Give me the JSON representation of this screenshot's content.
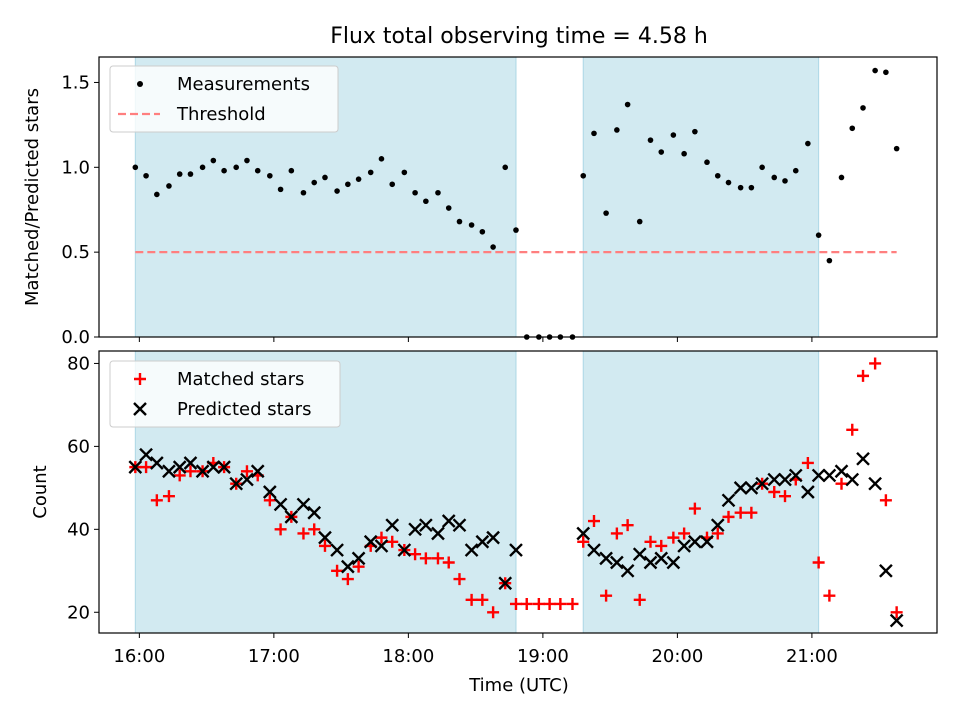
{
  "chart_data": {
    "title": "Flux total observing time = 4.58 h",
    "xlabel": "Time (UTC)",
    "x_ticks": [
      "16:00",
      "17:00",
      "18:00",
      "19:00",
      "20:00",
      "21:00"
    ],
    "x_tick_values": [
      16,
      17,
      18,
      19,
      20,
      21
    ],
    "xlim": [
      15.7,
      21.93
    ],
    "shaded_intervals": [
      [
        15.97,
        18.8
      ],
      [
        19.3,
        21.05
      ]
    ],
    "shade_color": "#add8e6",
    "panels": [
      {
        "type": "scatter",
        "ylabel": "Matched/Predicted stars",
        "ylim": [
          0,
          1.65
        ],
        "y_ticks": [
          0.0,
          0.5,
          1.0,
          1.5
        ],
        "y_tick_labels": [
          "0.0",
          "0.5",
          "1.0",
          "1.5"
        ],
        "legend_position": "top-left",
        "series": [
          {
            "name": "Measurements",
            "marker": "dot",
            "color": "#000000",
            "x": [
              15.97,
              16.05,
              16.13,
              16.22,
              16.3,
              16.38,
              16.47,
              16.55,
              16.63,
              16.72,
              16.8,
              16.88,
              16.97,
              17.05,
              17.13,
              17.22,
              17.3,
              17.38,
              17.47,
              17.55,
              17.63,
              17.72,
              17.8,
              17.88,
              17.97,
              18.05,
              18.13,
              18.22,
              18.3,
              18.38,
              18.47,
              18.55,
              18.63,
              18.72,
              18.8,
              18.88,
              18.97,
              19.05,
              19.13,
              19.22,
              19.3,
              19.38,
              19.47,
              19.55,
              19.63,
              19.72,
              19.8,
              19.88,
              19.97,
              20.05,
              20.13,
              20.22,
              20.3,
              20.38,
              20.47,
              20.55,
              20.63,
              20.72,
              20.8,
              20.88,
              20.97,
              21.05,
              21.13,
              21.22,
              21.3,
              21.38,
              21.47,
              21.55,
              21.63
            ],
            "y": [
              1.0,
              0.95,
              0.84,
              0.89,
              0.96,
              0.96,
              1.0,
              1.04,
              0.98,
              1.0,
              1.04,
              0.98,
              0.95,
              0.87,
              0.98,
              0.85,
              0.91,
              0.94,
              0.86,
              0.9,
              0.93,
              0.97,
              1.05,
              0.9,
              0.97,
              0.85,
              0.8,
              0.85,
              0.76,
              0.68,
              0.66,
              0.62,
              0.53,
              1.0,
              0.63,
              0.0,
              0.0,
              0.0,
              0.0,
              0.0,
              0.95,
              1.2,
              0.73,
              1.22,
              1.37,
              0.68,
              1.16,
              1.09,
              1.19,
              1.08,
              1.21,
              1.03,
              0.95,
              0.91,
              0.88,
              0.88,
              1.0,
              0.94,
              0.92,
              0.98,
              1.14,
              0.6,
              0.45,
              0.94,
              1.23,
              1.35,
              1.57,
              1.56,
              1.11
            ]
          },
          {
            "name": "Threshold",
            "marker": "dashed-line",
            "color": "#ff7f7f",
            "x": [
              15.97,
              21.63
            ],
            "y": [
              0.5,
              0.5
            ]
          }
        ]
      },
      {
        "type": "scatter",
        "ylabel": "Count",
        "ylim": [
          15,
          83
        ],
        "y_ticks": [
          20,
          40,
          60,
          80
        ],
        "y_tick_labels": [
          "20",
          "40",
          "60",
          "80"
        ],
        "legend_position": "top-left",
        "series": [
          {
            "name": "Matched stars",
            "marker": "plus",
            "color": "#ff0000",
            "x": [
              15.97,
              16.05,
              16.13,
              16.22,
              16.3,
              16.38,
              16.47,
              16.55,
              16.63,
              16.72,
              16.8,
              16.88,
              16.97,
              17.05,
              17.13,
              17.22,
              17.3,
              17.38,
              17.47,
              17.55,
              17.63,
              17.72,
              17.8,
              17.88,
              17.97,
              18.05,
              18.13,
              18.22,
              18.3,
              18.38,
              18.47,
              18.55,
              18.63,
              18.72,
              18.8,
              18.88,
              18.97,
              19.05,
              19.13,
              19.22,
              19.3,
              19.38,
              19.47,
              19.55,
              19.63,
              19.72,
              19.8,
              19.88,
              19.97,
              20.05,
              20.13,
              20.22,
              20.3,
              20.38,
              20.47,
              20.55,
              20.63,
              20.72,
              20.8,
              20.88,
              20.97,
              21.05,
              21.13,
              21.22,
              21.3,
              21.38,
              21.47,
              21.55,
              21.63
            ],
            "y": [
              55,
              55,
              47,
              48,
              53,
              54,
              54,
              56,
              55,
              51,
              54,
              53,
              47,
              40,
              43,
              39,
              40,
              36,
              30,
              28,
              31,
              36,
              38,
              37,
              35,
              34,
              33,
              33,
              32,
              28,
              23,
              23,
              20,
              27,
              22,
              22,
              22,
              22,
              22,
              22,
              37,
              42,
              24,
              39,
              41,
              23,
              37,
              36,
              38,
              39,
              45,
              38,
              39,
              43,
              44,
              44,
              51,
              49,
              48,
              52,
              56,
              32,
              24,
              51,
              64,
              77,
              80,
              47,
              20
            ]
          },
          {
            "name": "Predicted stars",
            "marker": "x",
            "color": "#000000",
            "x": [
              15.97,
              16.05,
              16.13,
              16.22,
              16.3,
              16.38,
              16.47,
              16.55,
              16.63,
              16.72,
              16.8,
              16.88,
              16.97,
              17.05,
              17.13,
              17.22,
              17.3,
              17.38,
              17.47,
              17.55,
              17.63,
              17.72,
              17.8,
              17.88,
              17.97,
              18.05,
              18.13,
              18.22,
              18.3,
              18.38,
              18.47,
              18.55,
              18.63,
              18.72,
              18.8,
              19.3,
              19.38,
              19.47,
              19.55,
              19.63,
              19.72,
              19.8,
              19.88,
              19.97,
              20.05,
              20.13,
              20.22,
              20.3,
              20.38,
              20.47,
              20.55,
              20.63,
              20.72,
              20.8,
              20.88,
              20.97,
              21.05,
              21.13,
              21.22,
              21.3,
              21.38,
              21.47,
              21.55,
              21.63
            ],
            "y": [
              55,
              58,
              56,
              54,
              55,
              56,
              54,
              55,
              55,
              51,
              52,
              54,
              49,
              46,
              43,
              46,
              44,
              38,
              35,
              31,
              33,
              37,
              36,
              41,
              35,
              40,
              41,
              39,
              42,
              41,
              35,
              37,
              38,
              27,
              35,
              39,
              35,
              33,
              32,
              30,
              34,
              32,
              33,
              32,
              36,
              37,
              37,
              41,
              47,
              50,
              50,
              51,
              52,
              52,
              53,
              49,
              53,
              53,
              54,
              52,
              57,
              51,
              30,
              18
            ]
          }
        ]
      }
    ]
  }
}
